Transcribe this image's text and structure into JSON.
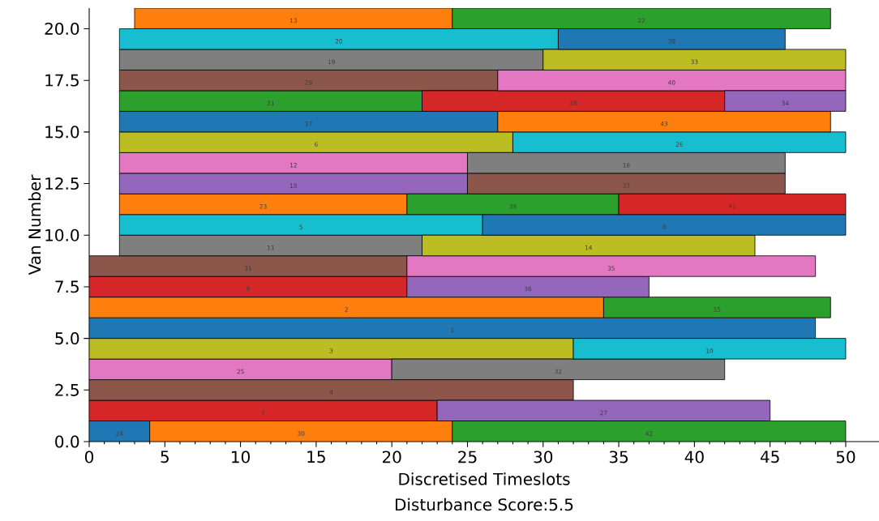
{
  "chart_data": {
    "type": "bar",
    "orientation": "horizontal",
    "xlabel": "Discretised Timeslots",
    "ylabel": "Van Number",
    "series": [
      {
        "x": [
          0.5,
          1.5,
          2.5,
          3.5,
          4.5,
          5.5,
          6.5,
          7.5,
          8.5,
          9.5,
          10.5,
          11.5,
          12.5,
          13.5,
          14.5,
          15.5,
          16.5,
          17.5,
          18.5,
          19.5,
          20.5
        ],
        "base": [
          0,
          0,
          0,
          0,
          0,
          0,
          0,
          0,
          0,
          2,
          2,
          2,
          2,
          2,
          2,
          2,
          2,
          2,
          2,
          2,
          3
        ],
        "values": [
          4,
          23,
          32,
          20,
          32,
          48,
          34,
          21,
          21,
          20,
          24,
          19,
          23,
          23,
          26,
          25,
          20,
          25,
          28,
          29,
          21
        ],
        "colors": [
          "#1f77b4",
          "#d62728",
          "#8c564b",
          "#e377c2",
          "#bcbd22",
          "#1f77b4",
          "#ff7f0e",
          "#d62728",
          "#8c564b",
          "#7f7f7f",
          "#17becf",
          "#ff7f0e",
          "#9467bd",
          "#e377c2",
          "#bcbd22",
          "#1f77b4",
          "#2ca02c",
          "#8c564b",
          "#7f7f7f",
          "#17becf",
          "#ff7f0e"
        ]
      },
      {
        "x": [
          0.5,
          1.5,
          2.5,
          3.5,
          4.5,
          5.5,
          6.5,
          7.5,
          8.5,
          9.5,
          10.5,
          11.5,
          12.5,
          13.5,
          14.5,
          15.5,
          16.5,
          17.5,
          18.5,
          19.5,
          20.5
        ],
        "base": [
          4,
          23,
          null,
          20,
          32,
          null,
          34,
          21,
          21,
          22,
          26,
          21,
          25,
          25,
          28,
          27,
          22,
          27,
          30,
          31,
          24
        ],
        "values": [
          20,
          22,
          null,
          22,
          18,
          null,
          15,
          16,
          27,
          22,
          24,
          14,
          21,
          21,
          22,
          22,
          20,
          23,
          20,
          15,
          25
        ],
        "colors": [
          "#ff7f0e",
          "#9467bd",
          null,
          "#7f7f7f",
          "#17becf",
          null,
          "#2ca02c",
          "#9467bd",
          "#e377c2",
          "#bcbd22",
          "#1f77b4",
          "#2ca02c",
          "#8c564b",
          "#7f7f7f",
          "#17becf",
          "#ff7f0e",
          "#d62728",
          "#e377c2",
          "#bcbd22",
          "#1f77b4",
          "#2ca02c"
        ]
      },
      {
        "x": [
          0.5,
          1.5,
          2.5,
          3.5,
          4.5,
          5.5,
          6.5,
          7.5,
          8.5,
          9.5,
          10.5,
          11.5,
          12.5,
          13.5,
          14.5,
          15.5,
          16.5
        ],
        "base": [
          24,
          null,
          null,
          null,
          null,
          null,
          null,
          null,
          null,
          null,
          null,
          35,
          null,
          null,
          null,
          null,
          42
        ],
        "values": [
          26,
          null,
          null,
          null,
          null,
          null,
          null,
          null,
          null,
          null,
          null,
          15,
          null,
          null,
          null,
          null,
          8
        ],
        "colors": [
          "#2ca02c",
          null,
          null,
          null,
          null,
          null,
          null,
          null,
          null,
          null,
          null,
          "#d62728",
          null,
          null,
          null,
          null,
          "#9467bd"
        ]
      }
    ],
    "annotations": [
      "24",
      "7",
      "4",
      "25",
      "3",
      "1",
      "2",
      "9",
      "31",
      "11",
      "5",
      "23",
      "18",
      "12",
      "6",
      "17",
      "21",
      "29",
      "19",
      "20",
      "13",
      "30",
      "27",
      "32",
      "10",
      "15",
      "36",
      "35",
      "14",
      "8",
      "38",
      "37",
      "16",
      "26",
      "43",
      "28",
      "40",
      "33",
      "39",
      "22",
      "42",
      "41",
      "34",
      "Disturbance Score:5.5"
    ],
    "xlim": [
      0,
      52.2
    ],
    "xticks": [
      0,
      {
        "value": 1,
        "label": null
      },
      {
        "value": 2,
        "label": null
      },
      {
        "value": 3,
        "label": null
      },
      {
        "value": 4,
        "label": null
      },
      5,
      {
        "value": 6,
        "label": null
      },
      {
        "value": 7,
        "label": null
      },
      {
        "value": 8,
        "label": null
      },
      {
        "value": 9,
        "label": null
      },
      10,
      {
        "value": 11,
        "label": null
      },
      {
        "value": 12,
        "label": null
      },
      {
        "value": 13,
        "label": null
      },
      {
        "value": 14,
        "label": null
      },
      15,
      {
        "value": 16,
        "label": null
      },
      {
        "value": 17,
        "label": null
      },
      {
        "value": 18,
        "label": null
      },
      {
        "value": 19,
        "label": null
      },
      20,
      {
        "value": 21,
        "label": null
      },
      {
        "value": 22,
        "label": null
      },
      {
        "value": 23,
        "label": null
      },
      {
        "value": 24,
        "label": null
      },
      25,
      {
        "value": 26,
        "label": null
      },
      {
        "value": 27,
        "label": null
      },
      {
        "value": 28,
        "label": null
      },
      {
        "value": 29,
        "label": null
      },
      30,
      {
        "value": 31,
        "label": null
      },
      {
        "value": 32,
        "label": null
      },
      {
        "value": 33,
        "label": null
      },
      {
        "value": 34,
        "label": null
      },
      35,
      {
        "value": 36,
        "label": null
      },
      {
        "value": 37,
        "label": null
      },
      {
        "value": 38,
        "label": null
      },
      {
        "value": 39,
        "label": null
      },
      40,
      {
        "value": 41,
        "label": null
      },
      {
        "value": 42,
        "label": null
      },
      {
        "value": 43,
        "label": null
      },
      {
        "value": 44,
        "label": null
      },
      45,
      {
        "value": 46,
        "label": null
      },
      {
        "value": 47,
        "label": null
      },
      {
        "value": 48,
        "label": null
      },
      {
        "value": 49,
        "label": null
      },
      50
    ],
    "grid": false,
    "ylim": [
      0,
      21
    ],
    "yticks": [
      {
        "value": 0,
        "label": "0.0"
      },
      {
        "value": 2.5,
        "label": "2.5"
      },
      {
        "value": 5,
        "label": "5.0"
      },
      {
        "value": 7.5,
        "label": "7.5"
      },
      {
        "value": 10,
        "label": "10.0"
      },
      {
        "value": 12.5,
        "label": "12.5"
      },
      {
        "value": 15,
        "label": "15.0"
      },
      {
        "value": 17.5,
        "label": "17.5"
      },
      {
        "value": 20,
        "label": "20.0"
      }
    ]
  }
}
